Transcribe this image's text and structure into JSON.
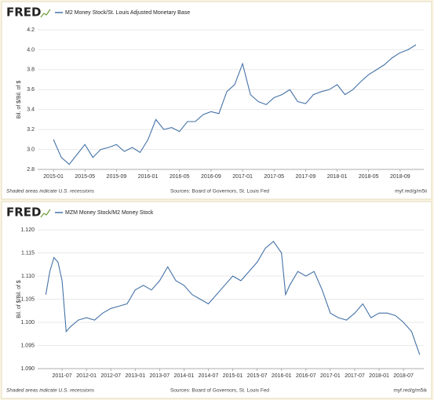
{
  "chart_data": [
    {
      "type": "line",
      "brand": "FRED",
      "ylabel": "Bil. of $/Bil. of $",
      "note": "Shaded areas indicate U.S. recessions",
      "source": "Sources: Board of Governors, St. Louis Fed",
      "link": "myf.red/g/m5ii",
      "xlim": [
        "2014-11",
        "2018-12"
      ],
      "xticks": [
        "2015-01",
        "2015-05",
        "2015-09",
        "2016-01",
        "2016-05",
        "2016-09",
        "2017-01",
        "2017-05",
        "2017-09",
        "2018-01",
        "2018-05",
        "2018-09"
      ],
      "ylim": [
        2.8,
        4.2
      ],
      "yticks": [
        2.8,
        {
          "value": 3,
          "label": "3.0"
        },
        3.2,
        3.4,
        3.6,
        3.8,
        {
          "value": 4,
          "label": "4.0"
        },
        4.2
      ],
      "grid": true,
      "x": [
        "2015-01",
        "2015-02",
        "2015-03",
        "2015-04",
        "2015-05",
        "2015-06",
        "2015-07",
        "2015-08",
        "2015-09",
        "2015-10",
        "2015-11",
        "2015-12",
        "2016-01",
        "2016-02",
        "2016-03",
        "2016-04",
        "2016-05",
        "2016-06",
        "2016-07",
        "2016-08",
        "2016-09",
        "2016-10",
        "2016-11",
        "2016-12",
        "2017-01",
        "2017-02",
        "2017-03",
        "2017-04",
        "2017-05",
        "2017-06",
        "2017-07",
        "2017-08",
        "2017-09",
        "2017-10",
        "2017-11",
        "2017-12",
        "2018-01",
        "2018-02",
        "2018-03",
        "2018-04",
        "2018-05",
        "2018-06",
        "2018-07",
        "2018-08",
        "2018-09",
        "2018-10",
        "2018-11"
      ],
      "series": [
        {
          "name": "M2 Money Stock/St. Louis Adjusted Monetary Base",
          "color": "#4572a7",
          "values": [
            3.1,
            2.92,
            2.85,
            2.95,
            3.05,
            2.92,
            3.0,
            3.02,
            3.05,
            2.98,
            3.02,
            2.97,
            3.1,
            3.3,
            3.2,
            3.22,
            3.18,
            3.28,
            3.28,
            3.35,
            3.38,
            3.36,
            3.58,
            3.65,
            3.86,
            3.55,
            3.48,
            3.45,
            3.52,
            3.55,
            3.6,
            3.48,
            3.46,
            3.55,
            3.58,
            3.6,
            3.65,
            3.55,
            3.6,
            3.68,
            3.75,
            3.8,
            3.85,
            3.92,
            3.97,
            4.0,
            4.05
          ]
        }
      ]
    },
    {
      "type": "line",
      "brand": "FRED",
      "ylabel": "Bil. of $/Bil. of $",
      "note": "Shaded areas indicate U.S. recessions",
      "source": "Sources: Board of Governors, St. Louis Fed",
      "link": "myf.red/g/m5ik",
      "xlim": [
        "2011-01",
        "2018-12"
      ],
      "xticks": [
        "2011-07",
        "2012-01",
        "2012-07",
        "2013-01",
        "2013-07",
        "2014-01",
        "2014-07",
        "2015-01",
        "2015-07",
        "2016-01",
        "2016-07",
        "2017-01",
        "2017-07",
        "2018-01",
        "2018-07"
      ],
      "ylim": [
        1.09,
        1.12
      ],
      "yticks": [
        {
          "value": 1.09,
          "label": "1.090"
        },
        1.095,
        {
          "value": 1.1,
          "label": "1.100"
        },
        1.105,
        {
          "value": 1.11,
          "label": "1.110"
        },
        1.115,
        {
          "value": 1.12,
          "label": "1.120"
        }
      ],
      "grid": true,
      "x": [
        "2011-03",
        "2011-04",
        "2011-05",
        "2011-06",
        "2011-07",
        "2011-08",
        "2011-09",
        "2011-11",
        "2012-01",
        "2012-03",
        "2012-05",
        "2012-07",
        "2012-09",
        "2012-11",
        "2013-01",
        "2013-03",
        "2013-05",
        "2013-07",
        "2013-09",
        "2013-11",
        "2014-01",
        "2014-03",
        "2014-05",
        "2014-07",
        "2014-09",
        "2014-11",
        "2015-01",
        "2015-03",
        "2015-05",
        "2015-07",
        "2015-09",
        "2015-11",
        "2016-01",
        "2016-02",
        "2016-03",
        "2016-05",
        "2016-07",
        "2016-09",
        "2016-11",
        "2017-01",
        "2017-03",
        "2017-05",
        "2017-07",
        "2017-09",
        "2017-11",
        "2018-01",
        "2018-03",
        "2018-05",
        "2018-07",
        "2018-09",
        "2018-10",
        "2018-11"
      ],
      "series": [
        {
          "name": "MZM Money Stock/M2 Money Stock",
          "color": "#4572a7",
          "values": [
            1.106,
            1.111,
            1.114,
            1.113,
            1.109,
            1.098,
            1.099,
            1.1005,
            1.101,
            1.1005,
            1.102,
            1.103,
            1.1035,
            1.104,
            1.107,
            1.108,
            1.107,
            1.109,
            1.112,
            1.109,
            1.108,
            1.106,
            1.105,
            1.104,
            1.106,
            1.108,
            1.11,
            1.109,
            1.111,
            1.113,
            1.116,
            1.1175,
            1.115,
            1.106,
            1.108,
            1.111,
            1.11,
            1.111,
            1.107,
            1.102,
            1.101,
            1.1005,
            1.102,
            1.104,
            1.101,
            1.102,
            1.102,
            1.1015,
            1.1,
            1.098,
            1.0955,
            1.093
          ]
        }
      ]
    }
  ]
}
